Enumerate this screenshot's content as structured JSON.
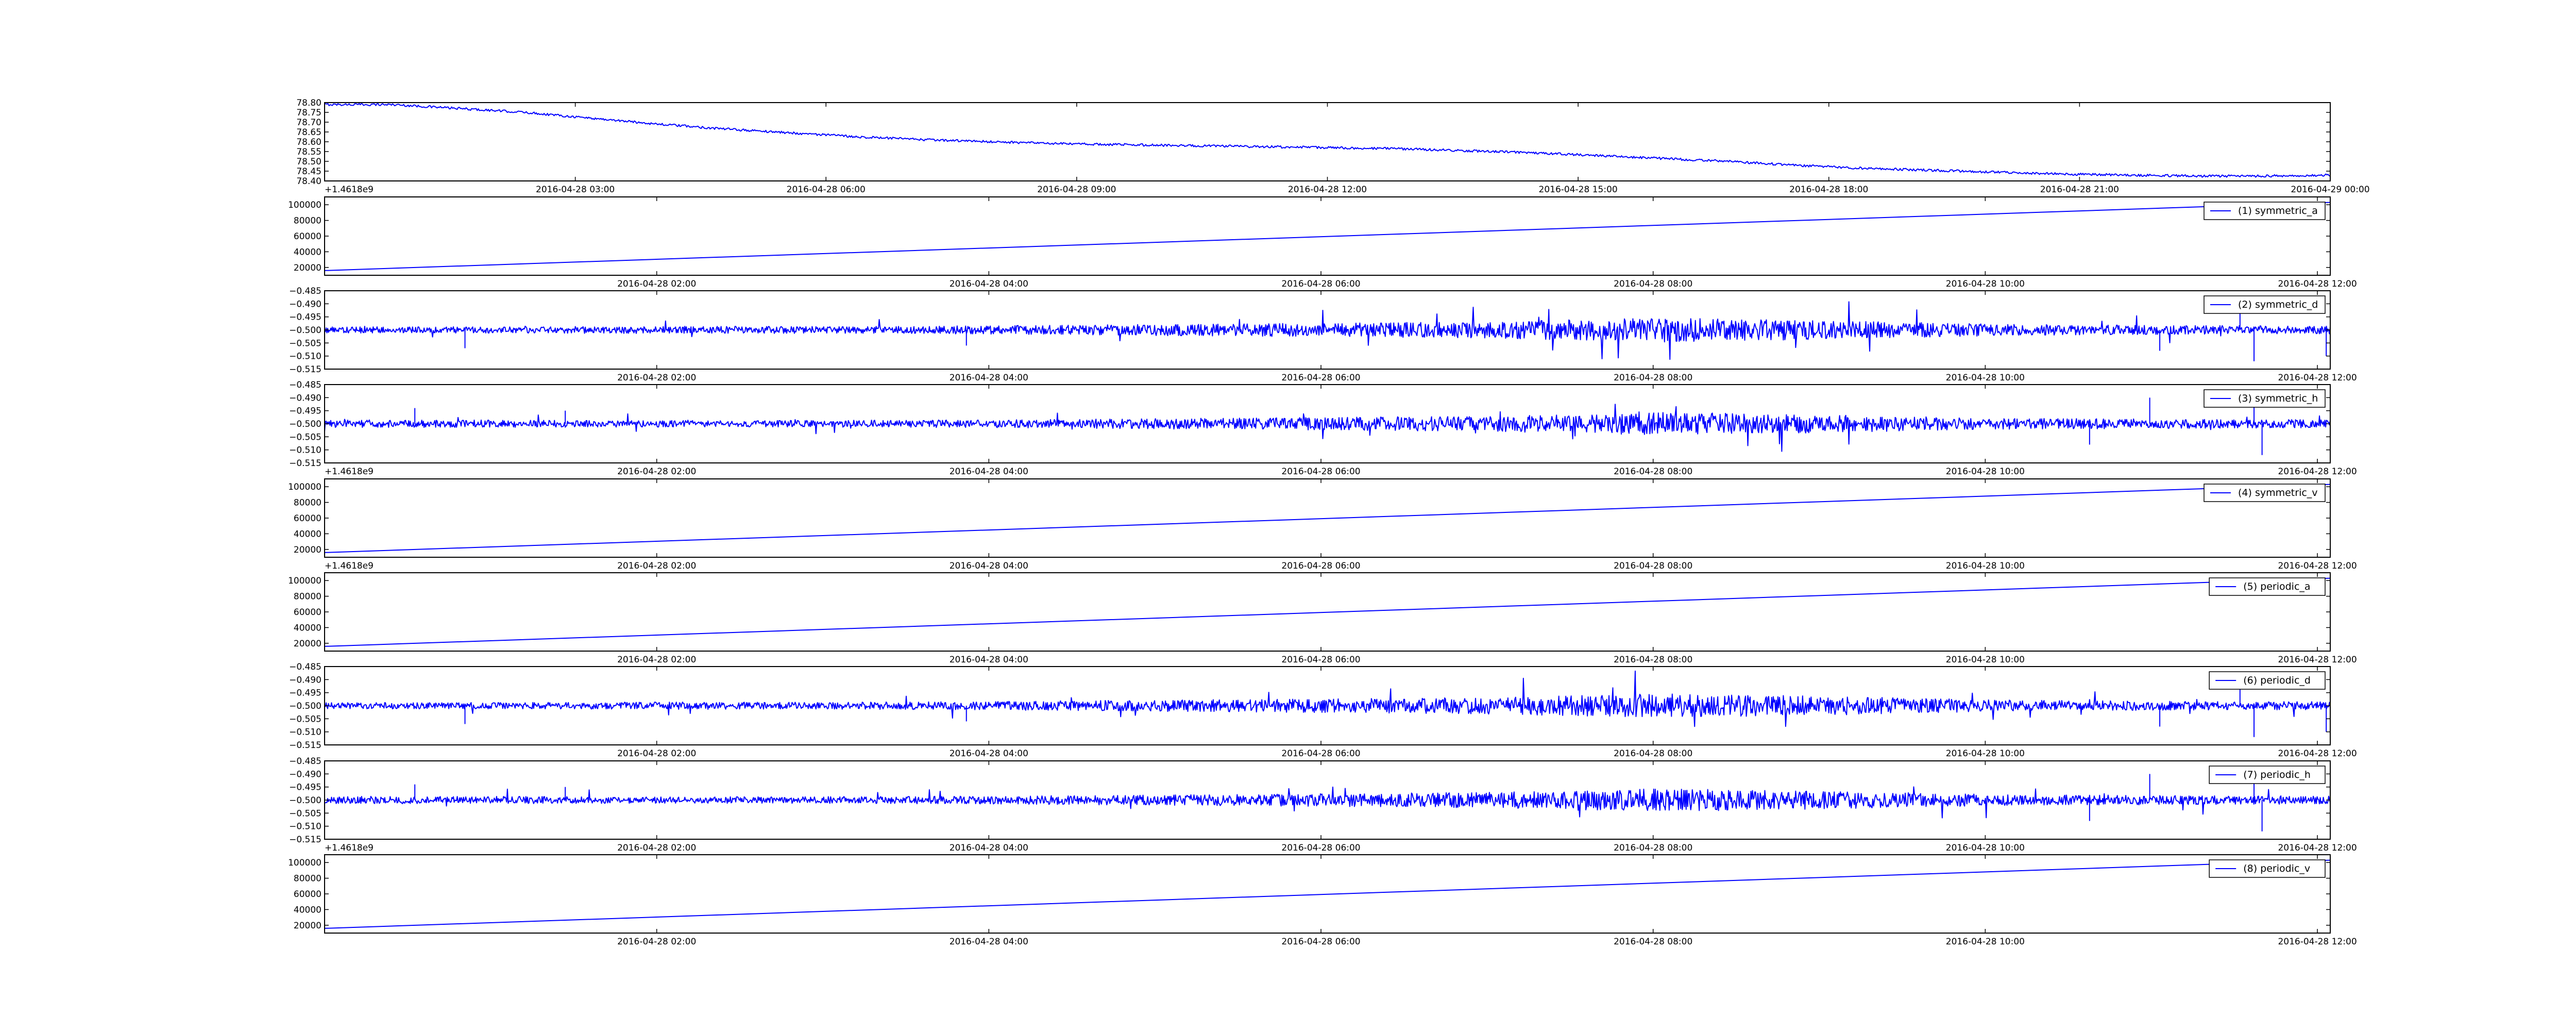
{
  "chart_data": [
    {
      "type": "line",
      "title": "",
      "xlabel": "",
      "ylabel": "",
      "offset_text": "+1.4618e9",
      "x_ticks": [
        "2016-04-28 03:00",
        "2016-04-28 06:00",
        "2016-04-28 09:00",
        "2016-04-28 12:00",
        "2016-04-28 15:00",
        "2016-04-28 18:00",
        "2016-04-28 21:00",
        "2016-04-29 00:00"
      ],
      "y_ticks": [
        "78.40",
        "78.45",
        "78.50",
        "78.55",
        "78.60",
        "78.65",
        "78.70",
        "78.75",
        "78.80"
      ],
      "ylim": [
        78.4,
        78.8
      ],
      "legend": null,
      "series": [
        {
          "color": "#0000ff",
          "noise": 0.006,
          "values": [
            78.79,
            78.79,
            78.77,
            78.75,
            78.72,
            78.69,
            78.665,
            78.645,
            78.625,
            78.61,
            78.6,
            78.59,
            78.585,
            78.58,
            78.575,
            78.57,
            78.565,
            78.555,
            78.545,
            78.53,
            78.515,
            78.5,
            78.48,
            78.465,
            78.455,
            78.445,
            78.435,
            78.43,
            78.425,
            78.425,
            78.43
          ]
        }
      ]
    },
    {
      "type": "line",
      "title": "",
      "xlabel": "",
      "ylabel": "",
      "offset_text": "",
      "x_ticks": [
        "2016-04-28 02:00",
        "2016-04-28 04:00",
        "2016-04-28 06:00",
        "2016-04-28 08:00",
        "2016-04-28 10:00",
        "2016-04-28 12:00"
      ],
      "y_ticks": [
        "20000",
        "40000",
        "60000",
        "80000",
        "100000"
      ],
      "ylim": [
        10000,
        110000
      ],
      "legend": "upper right",
      "series": [
        {
          "name": "(1) symmetric_a",
          "color": "#0000ff",
          "values": [
            16000,
            103000
          ]
        }
      ]
    },
    {
      "type": "line",
      "title": "",
      "xlabel": "",
      "ylabel": "",
      "offset_text": "",
      "x_ticks": [
        "2016-04-28 02:00",
        "2016-04-28 04:00",
        "2016-04-28 06:00",
        "2016-04-28 08:00",
        "2016-04-28 10:00",
        "2016-04-28 12:00"
      ],
      "y_ticks": [
        "−0.515",
        "−0.510",
        "−0.505",
        "−0.500",
        "−0.495",
        "−0.490",
        "−0.485"
      ],
      "ylim": [
        -0.515,
        -0.485
      ],
      "legend": "upper right",
      "series": [
        {
          "name": "(2) symmetric_d",
          "color": "#0000ff",
          "baseline": -0.5,
          "amplitude": [
            0.0012,
            0.0012,
            0.0014,
            0.0013,
            0.0016,
            0.0022,
            0.0026,
            0.0032,
            0.0046,
            0.0036,
            0.0022,
            0.0017,
            0.0015
          ],
          "spikes": [
            [
              0.955,
              -0.488
            ],
            [
              0.962,
              -0.512
            ],
            [
              0.915,
              -0.508
            ],
            [
              0.07,
              -0.507
            ],
            [
              0.32,
              -0.506
            ],
            [
              0.998,
              -0.51
            ]
          ]
        }
      ]
    },
    {
      "type": "line",
      "title": "",
      "xlabel": "",
      "ylabel": "",
      "offset_text": "+1.4618e9",
      "x_ticks": [
        "2016-04-28 02:00",
        "2016-04-28 04:00",
        "2016-04-28 06:00",
        "2016-04-28 08:00",
        "2016-04-28 10:00",
        "2016-04-28 12:00"
      ],
      "y_ticks": [
        "−0.515",
        "−0.510",
        "−0.505",
        "−0.500",
        "−0.495",
        "−0.490",
        "−0.485"
      ],
      "ylim": [
        -0.515,
        -0.485
      ],
      "legend": "upper right",
      "series": [
        {
          "name": "(3) symmetric_h",
          "color": "#0000ff",
          "baseline": -0.5,
          "amplitude": [
            0.0014,
            0.0014,
            0.0012,
            0.0013,
            0.0015,
            0.002,
            0.0024,
            0.003,
            0.0044,
            0.0034,
            0.0021,
            0.0018,
            0.0015
          ],
          "spikes": [
            [
              0.962,
              -0.489
            ],
            [
              0.966,
              -0.512
            ],
            [
              0.91,
              -0.49
            ],
            [
              0.045,
              -0.494
            ],
            [
              0.12,
              -0.495
            ],
            [
              0.88,
              -0.508
            ]
          ]
        }
      ]
    },
    {
      "type": "line",
      "title": "",
      "xlabel": "",
      "ylabel": "",
      "offset_text": "+1.4618e9",
      "x_ticks": [
        "2016-04-28 02:00",
        "2016-04-28 04:00",
        "2016-04-28 06:00",
        "2016-04-28 08:00",
        "2016-04-28 10:00",
        "2016-04-28 12:00"
      ],
      "y_ticks": [
        "20000",
        "40000",
        "60000",
        "80000",
        "100000"
      ],
      "ylim": [
        10000,
        110000
      ],
      "legend": "upper right",
      "series": [
        {
          "name": "(4) symmetric_v",
          "color": "#0000ff",
          "values": [
            16000,
            103000
          ]
        }
      ]
    },
    {
      "type": "line",
      "title": "",
      "xlabel": "",
      "ylabel": "",
      "offset_text": "",
      "x_ticks": [
        "2016-04-28 02:00",
        "2016-04-28 04:00",
        "2016-04-28 06:00",
        "2016-04-28 08:00",
        "2016-04-28 10:00",
        "2016-04-28 12:00"
      ],
      "y_ticks": [
        "20000",
        "40000",
        "60000",
        "80000",
        "100000"
      ],
      "ylim": [
        10000,
        110000
      ],
      "legend": "upper right",
      "series": [
        {
          "name": "(5) periodic_a",
          "color": "#0000ff",
          "values": [
            16000,
            103000
          ]
        }
      ]
    },
    {
      "type": "line",
      "title": "",
      "xlabel": "",
      "ylabel": "",
      "offset_text": "",
      "x_ticks": [
        "2016-04-28 02:00",
        "2016-04-28 04:00",
        "2016-04-28 06:00",
        "2016-04-28 08:00",
        "2016-04-28 10:00",
        "2016-04-28 12:00"
      ],
      "y_ticks": [
        "−0.515",
        "−0.510",
        "−0.505",
        "−0.500",
        "−0.495",
        "−0.490",
        "−0.485"
      ],
      "ylim": [
        -0.515,
        -0.485
      ],
      "legend": "upper right",
      "series": [
        {
          "name": "(6) periodic_d",
          "color": "#0000ff",
          "baseline": -0.5,
          "amplitude": [
            0.0012,
            0.0012,
            0.0014,
            0.0013,
            0.0016,
            0.0022,
            0.0026,
            0.0032,
            0.0046,
            0.0036,
            0.0022,
            0.0017,
            0.0015
          ],
          "spikes": [
            [
              0.955,
              -0.488
            ],
            [
              0.962,
              -0.512
            ],
            [
              0.915,
              -0.508
            ],
            [
              0.07,
              -0.507
            ],
            [
              0.32,
              -0.506
            ],
            [
              0.998,
              -0.51
            ]
          ]
        }
      ]
    },
    {
      "type": "line",
      "title": "",
      "xlabel": "",
      "ylabel": "",
      "offset_text": "+1.4618e9",
      "x_ticks": [
        "2016-04-28 02:00",
        "2016-04-28 04:00",
        "2016-04-28 06:00",
        "2016-04-28 08:00",
        "2016-04-28 10:00",
        "2016-04-28 12:00"
      ],
      "y_ticks": [
        "−0.515",
        "−0.510",
        "−0.505",
        "−0.500",
        "−0.495",
        "−0.490",
        "−0.485"
      ],
      "ylim": [
        -0.515,
        -0.485
      ],
      "legend": "upper right",
      "series": [
        {
          "name": "(7) periodic_h",
          "color": "#0000ff",
          "baseline": -0.5,
          "amplitude": [
            0.0014,
            0.0014,
            0.0012,
            0.0013,
            0.0015,
            0.002,
            0.0024,
            0.003,
            0.0044,
            0.0034,
            0.0021,
            0.0018,
            0.0015
          ],
          "spikes": [
            [
              0.962,
              -0.489
            ],
            [
              0.966,
              -0.512
            ],
            [
              0.91,
              -0.49
            ],
            [
              0.045,
              -0.494
            ],
            [
              0.12,
              -0.495
            ],
            [
              0.88,
              -0.508
            ]
          ]
        }
      ]
    },
    {
      "type": "line",
      "title": "",
      "xlabel": "",
      "ylabel": "",
      "offset_text": "",
      "x_ticks": [
        "2016-04-28 02:00",
        "2016-04-28 04:00",
        "2016-04-28 06:00",
        "2016-04-28 08:00",
        "2016-04-28 10:00",
        "2016-04-28 12:00"
      ],
      "y_ticks": [
        "20000",
        "40000",
        "60000",
        "80000",
        "100000"
      ],
      "ylim": [
        10000,
        110000
      ],
      "legend": "upper right",
      "series": [
        {
          "name": "(8) periodic_v",
          "color": "#0000ff",
          "values": [
            16000,
            103000
          ]
        }
      ]
    }
  ]
}
